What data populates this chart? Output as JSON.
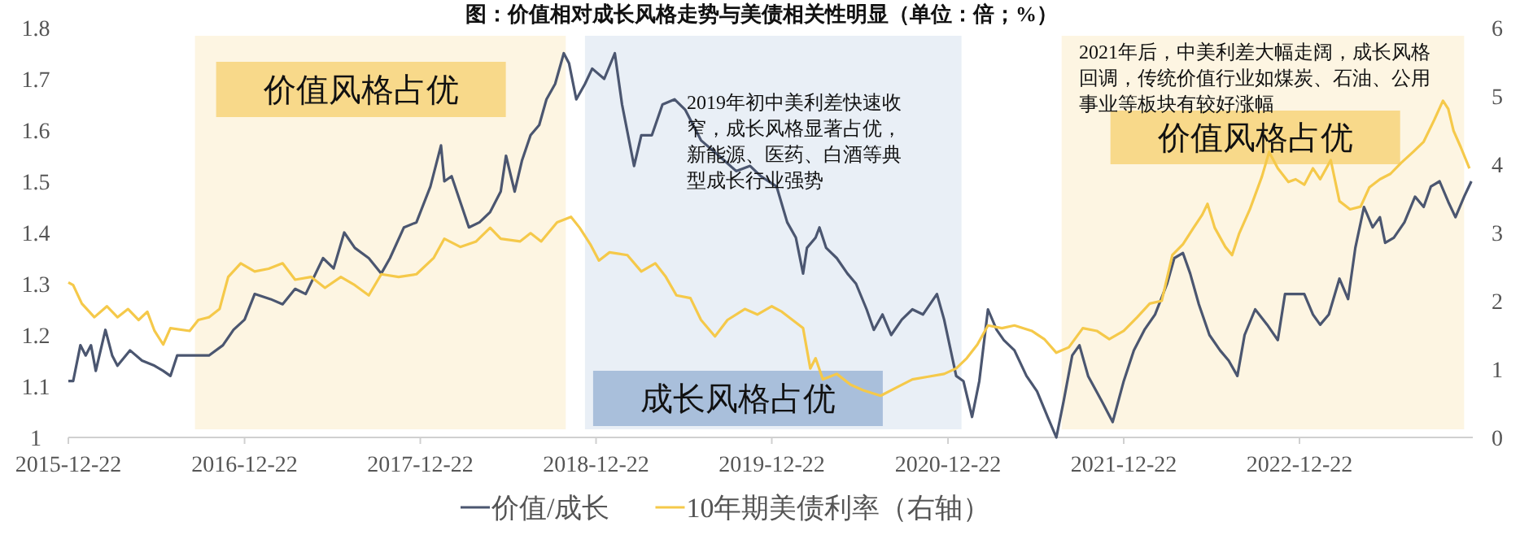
{
  "chart_data": {
    "type": "line",
    "title": "图：价值相对成长风格走势与美债相关性明显（单位：倍；%）",
    "xlim": [
      "2015-12-22",
      "2023-12-17"
    ],
    "xticks": [
      "2015-12-22",
      "2016-12-22",
      "2017-12-22",
      "2018-12-22",
      "2019-12-22",
      "2020-12-22",
      "2021-12-22",
      "2022-12-22"
    ],
    "ylim": [
      1,
      1.8
    ],
    "yticks": [
      1,
      1.1,
      1.2,
      1.3,
      1.4,
      1.5,
      1.6,
      1.7,
      1.8
    ],
    "y2lim": [
      0,
      6
    ],
    "y2ticks": [
      0,
      1,
      2,
      3,
      4,
      5,
      6
    ],
    "legend": "bottom",
    "grid": false,
    "bands": [
      {
        "axis": "x",
        "from": "2016-09-10",
        "to": "2018-10-20",
        "label": "价值风格占优",
        "color": "#f7d37a"
      },
      {
        "axis": "x",
        "from": "2018-11-29",
        "to": "2021-01-19",
        "label": "成长风格占优",
        "color": "#9db6d6"
      },
      {
        "axis": "x",
        "from": "2021-08-15",
        "to": "2023-11-29",
        "label": "价值风格占优",
        "color": "#f7d37a"
      }
    ],
    "annotations": [
      "2019年初中美利差快速收窄，成长风格显著占优，新能源、医药、白酒等典型成长行业强势",
      "2021年后，中美利差大幅走阔，成长风格回调，传统价值行业如煤炭、石油、公用事业等板块有较好涨幅"
    ],
    "series": [
      {
        "name": "价值/成长",
        "color": "#4b5670",
        "x": [
          "2015-12-22",
          "2016-01-01",
          "2016-01-16",
          "2016-01-27",
          "2016-02-07",
          "2016-02-17",
          "2016-03-08",
          "2016-03-22",
          "2016-04-02",
          "2016-04-28",
          "2016-05-23",
          "2016-06-18",
          "2016-07-06",
          "2016-07-21",
          "2016-08-04",
          "2016-09-10",
          "2016-10-09",
          "2016-11-07",
          "2016-11-29",
          "2016-12-22",
          "2017-01-12",
          "2017-02-14",
          "2017-03-11",
          "2017-04-06",
          "2017-04-28",
          "2017-06-03",
          "2017-06-25",
          "2017-07-17",
          "2017-08-08",
          "2017-09-06",
          "2017-10-02",
          "2017-10-20",
          "2017-11-18",
          "2017-12-14",
          "2018-01-12",
          "2018-02-03",
          "2018-02-10",
          "2018-02-25",
          "2018-03-15",
          "2018-04-02",
          "2018-04-24",
          "2018-05-16",
          "2018-06-07",
          "2018-06-18",
          "2018-07-06",
          "2018-07-21",
          "2018-08-08",
          "2018-08-26",
          "2018-09-10",
          "2018-09-28",
          "2018-10-16",
          "2018-10-27",
          "2018-11-11",
          "2018-11-29",
          "2018-12-14",
          "2019-01-08",
          "2019-01-30",
          "2019-02-14",
          "2019-03-11",
          "2019-03-26",
          "2019-04-17",
          "2019-05-09",
          "2019-06-03",
          "2019-06-25",
          "2019-07-28",
          "2019-09-03",
          "2019-10-09",
          "2019-11-07",
          "2019-11-29",
          "2020-01-01",
          "2020-01-23",
          "2020-02-10",
          "2020-02-25",
          "2020-03-04",
          "2020-03-22",
          "2020-03-30",
          "2020-04-13",
          "2020-05-05",
          "2020-05-27",
          "2020-06-14",
          "2020-07-06",
          "2020-07-21",
          "2020-08-08",
          "2020-08-26",
          "2020-09-17",
          "2020-10-09",
          "2020-10-31",
          "2020-11-29",
          "2020-12-14",
          "2021-01-08",
          "2021-01-23",
          "2021-02-10",
          "2021-02-25",
          "2021-03-15",
          "2021-04-02",
          "2021-04-17",
          "2021-05-09",
          "2021-06-03",
          "2021-06-25",
          "2021-07-17",
          "2021-08-04",
          "2021-08-19",
          "2021-09-06",
          "2021-09-21",
          "2021-10-09",
          "2021-11-07",
          "2021-11-29",
          "2021-12-22",
          "2022-01-12",
          "2022-02-03",
          "2022-02-25",
          "2022-03-22",
          "2022-04-06",
          "2022-04-24",
          "2022-05-09",
          "2022-05-27",
          "2022-06-18",
          "2022-07-10",
          "2022-07-28",
          "2022-08-15",
          "2022-08-30",
          "2022-09-21",
          "2022-10-16",
          "2022-11-07",
          "2022-11-22",
          "2022-12-14",
          "2023-01-01",
          "2023-01-19",
          "2023-02-03",
          "2023-02-21",
          "2023-03-15",
          "2023-04-02",
          "2023-04-17",
          "2023-05-05",
          "2023-05-23",
          "2023-06-07",
          "2023-06-18",
          "2023-07-06",
          "2023-07-28",
          "2023-08-19",
          "2023-09-06",
          "2023-09-21",
          "2023-10-09",
          "2023-10-27",
          "2023-11-11",
          "2023-11-29",
          "2023-12-14"
        ],
        "values": [
          1.11,
          1.11,
          1.18,
          1.16,
          1.18,
          1.13,
          1.21,
          1.16,
          1.14,
          1.17,
          1.15,
          1.14,
          1.13,
          1.12,
          1.16,
          1.16,
          1.16,
          1.18,
          1.21,
          1.23,
          1.28,
          1.27,
          1.26,
          1.29,
          1.28,
          1.35,
          1.33,
          1.4,
          1.37,
          1.35,
          1.32,
          1.35,
          1.41,
          1.42,
          1.49,
          1.57,
          1.5,
          1.51,
          1.46,
          1.41,
          1.42,
          1.44,
          1.48,
          1.55,
          1.48,
          1.54,
          1.59,
          1.61,
          1.66,
          1.69,
          1.75,
          1.73,
          1.66,
          1.69,
          1.72,
          1.7,
          1.75,
          1.65,
          1.53,
          1.59,
          1.59,
          1.65,
          1.66,
          1.64,
          1.58,
          1.55,
          1.52,
          1.53,
          1.51,
          1.49,
          1.42,
          1.39,
          1.32,
          1.37,
          1.39,
          1.41,
          1.37,
          1.35,
          1.32,
          1.3,
          1.25,
          1.21,
          1.24,
          1.2,
          1.23,
          1.25,
          1.24,
          1.28,
          1.23,
          1.12,
          1.11,
          1.04,
          1.11,
          1.25,
          1.21,
          1.19,
          1.17,
          1.12,
          1.09,
          1.04,
          1.0,
          1.07,
          1.16,
          1.18,
          1.12,
          1.07,
          1.03,
          1.11,
          1.17,
          1.21,
          1.24,
          1.3,
          1.35,
          1.36,
          1.32,
          1.26,
          1.2,
          1.17,
          1.15,
          1.12,
          1.2,
          1.25,
          1.22,
          1.19,
          1.28,
          1.28,
          1.28,
          1.24,
          1.22,
          1.24,
          1.31,
          1.27,
          1.37,
          1.45,
          1.41,
          1.43,
          1.38,
          1.39,
          1.42,
          1.47,
          1.45,
          1.49,
          1.5,
          1.46,
          1.43,
          1.47,
          1.5
        ]
      },
      {
        "name": "10年期美债利率（右轴）",
        "color": "#f5c94a",
        "axis": "y2",
        "x": [
          "2015-12-22",
          "2016-01-01",
          "2016-01-19",
          "2016-02-14",
          "2016-03-11",
          "2016-04-02",
          "2016-04-24",
          "2016-05-16",
          "2016-06-03",
          "2016-06-18",
          "2016-07-06",
          "2016-07-21",
          "2016-08-30",
          "2016-09-17",
          "2016-10-09",
          "2016-10-31",
          "2016-11-18",
          "2016-12-14",
          "2017-01-12",
          "2017-02-10",
          "2017-03-11",
          "2017-04-06",
          "2017-05-09",
          "2017-06-07",
          "2017-07-10",
          "2017-08-08",
          "2017-09-06",
          "2017-10-02",
          "2017-11-07",
          "2017-12-14",
          "2018-01-19",
          "2018-02-10",
          "2018-03-15",
          "2018-04-17",
          "2018-05-16",
          "2018-06-07",
          "2018-07-17",
          "2018-08-08",
          "2018-08-30",
          "2018-10-02",
          "2018-10-31",
          "2018-11-18",
          "2018-12-10",
          "2018-12-28",
          "2019-01-19",
          "2019-02-25",
          "2019-03-26",
          "2019-04-24",
          "2019-05-16",
          "2019-06-07",
          "2019-07-06",
          "2019-07-28",
          "2019-08-26",
          "2019-09-21",
          "2019-10-27",
          "2019-11-22",
          "2019-12-22",
          "2020-01-12",
          "2020-02-03",
          "2020-02-25",
          "2020-03-11",
          "2020-03-22",
          "2020-04-06",
          "2020-05-05",
          "2020-06-03",
          "2020-06-29",
          "2020-08-04",
          "2020-09-06",
          "2020-10-09",
          "2020-11-11",
          "2020-12-14",
          "2021-01-08",
          "2021-01-30",
          "2021-02-21",
          "2021-03-15",
          "2021-04-13",
          "2021-05-09",
          "2021-06-14",
          "2021-07-10",
          "2021-08-04",
          "2021-08-30",
          "2021-09-28",
          "2021-10-27",
          "2021-11-22",
          "2021-12-22",
          "2022-01-19",
          "2022-02-14",
          "2022-03-11",
          "2022-04-02",
          "2022-04-24",
          "2022-05-16",
          "2022-06-03",
          "2022-06-14",
          "2022-06-29",
          "2022-07-21",
          "2022-08-04",
          "2022-08-19",
          "2022-09-10",
          "2022-10-05",
          "2022-10-20",
          "2022-11-07",
          "2022-11-29",
          "2022-12-14",
          "2023-01-01",
          "2023-01-19",
          "2023-02-03",
          "2023-02-25",
          "2023-03-15",
          "2023-04-06",
          "2023-04-28",
          "2023-05-16",
          "2023-06-07",
          "2023-06-29",
          "2023-07-21",
          "2023-08-15",
          "2023-09-06",
          "2023-09-28",
          "2023-10-16",
          "2023-10-27",
          "2023-11-07",
          "2023-11-22",
          "2023-12-10"
        ],
        "values": [
          2.27,
          2.23,
          1.96,
          1.76,
          1.92,
          1.76,
          1.88,
          1.72,
          1.84,
          1.56,
          1.36,
          1.6,
          1.56,
          1.72,
          1.76,
          1.88,
          2.35,
          2.55,
          2.43,
          2.47,
          2.55,
          2.31,
          2.35,
          2.19,
          2.35,
          2.23,
          2.08,
          2.39,
          2.35,
          2.39,
          2.63,
          2.91,
          2.79,
          2.87,
          3.07,
          2.91,
          2.87,
          2.99,
          2.87,
          3.15,
          3.23,
          3.07,
          2.83,
          2.59,
          2.71,
          2.67,
          2.43,
          2.55,
          2.35,
          2.08,
          2.04,
          1.72,
          1.48,
          1.72,
          1.88,
          1.8,
          1.92,
          1.84,
          1.72,
          1.6,
          1.01,
          1.16,
          0.85,
          0.93,
          0.77,
          0.69,
          0.61,
          0.73,
          0.85,
          0.89,
          0.93,
          1.01,
          1.16,
          1.36,
          1.64,
          1.6,
          1.64,
          1.56,
          1.44,
          1.24,
          1.32,
          1.6,
          1.56,
          1.44,
          1.56,
          1.76,
          1.96,
          2.0,
          2.67,
          2.83,
          3.07,
          3.26,
          3.42,
          3.07,
          2.79,
          2.67,
          2.99,
          3.34,
          3.82,
          4.18,
          3.94,
          3.74,
          3.78,
          3.7,
          3.94,
          3.78,
          4.06,
          3.46,
          3.34,
          3.38,
          3.66,
          3.78,
          3.86,
          4.02,
          4.18,
          4.33,
          4.65,
          4.93,
          4.81,
          4.49,
          4.25,
          3.94
        ]
      }
    ]
  }
}
